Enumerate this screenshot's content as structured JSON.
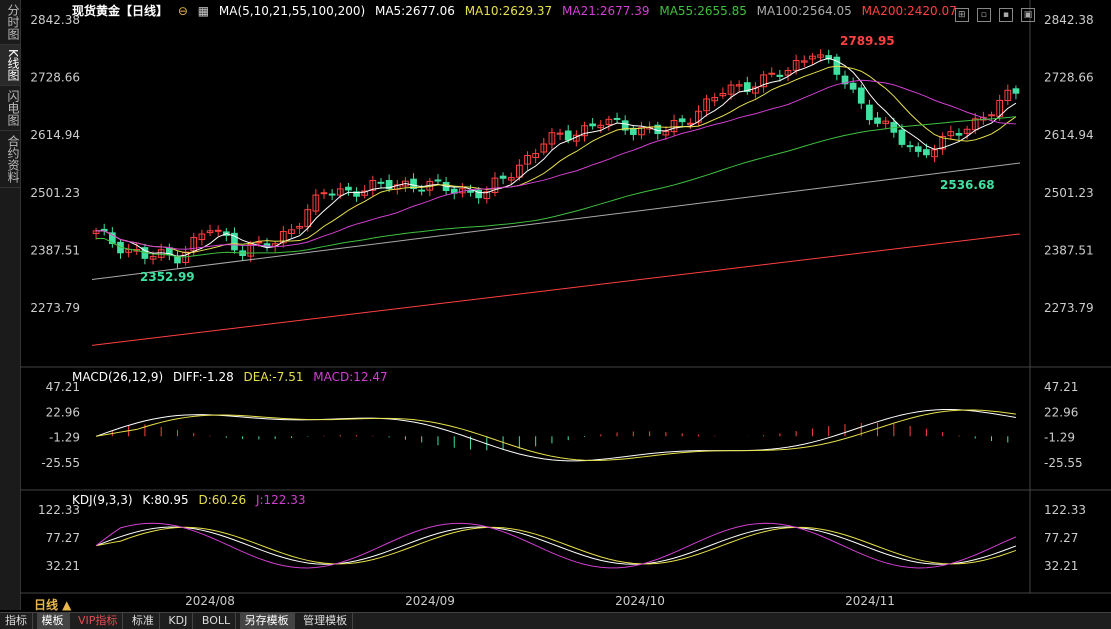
{
  "sidebar": {
    "tabs": [
      "分时图",
      "K线图",
      "闪电图",
      "合约资料"
    ]
  },
  "header": {
    "title": "现货黄金【日线】",
    "ma_label": "MA(5,10,21,55,100,200)",
    "ma5": "MA5:2677.06",
    "ma10": "MA10:2629.37",
    "ma21": "MA21:2677.39",
    "ma55": "MA55:2655.85",
    "ma100": "MA100:2564.05",
    "ma200": "MA200:2420.07"
  },
  "colors": {
    "up": "#ff4040",
    "down": "#40e0a0",
    "ma5": "#ffffff",
    "ma10": "#e8e04b",
    "ma21": "#d040d0",
    "ma55": "#40c040",
    "ma100": "#aaaaaa",
    "ma200": "#ff4040"
  },
  "price_axis": [
    "2842.38",
    "2728.66",
    "2614.94",
    "2501.23",
    "2387.51",
    "2273.79"
  ],
  "annotations": {
    "high": "2789.95",
    "low": "2536.68",
    "early_low": "2352.99"
  },
  "macd": {
    "label": "MACD(26,12,9)",
    "diff": "DIFF:-1.28",
    "dea": "DEA:-7.51",
    "macd": "MACD:12.47",
    "axis": [
      "47.21",
      "22.96",
      "-1.29",
      "-25.55"
    ]
  },
  "kdj": {
    "label": "KDJ(9,3,3)",
    "k": "K:80.95",
    "d": "D:60.26",
    "j": "J:122.33",
    "axis": [
      "122.33",
      "77.27",
      "32.21"
    ]
  },
  "dates": [
    "2024/08",
    "2024/09",
    "2024/10",
    "2024/11"
  ],
  "period_label": "日线 ▲",
  "toolbar": [
    "指标",
    "模板",
    "VIP指标",
    "标准",
    "KDJ",
    "BOLL",
    "另存模板",
    "管理模板"
  ]
}
